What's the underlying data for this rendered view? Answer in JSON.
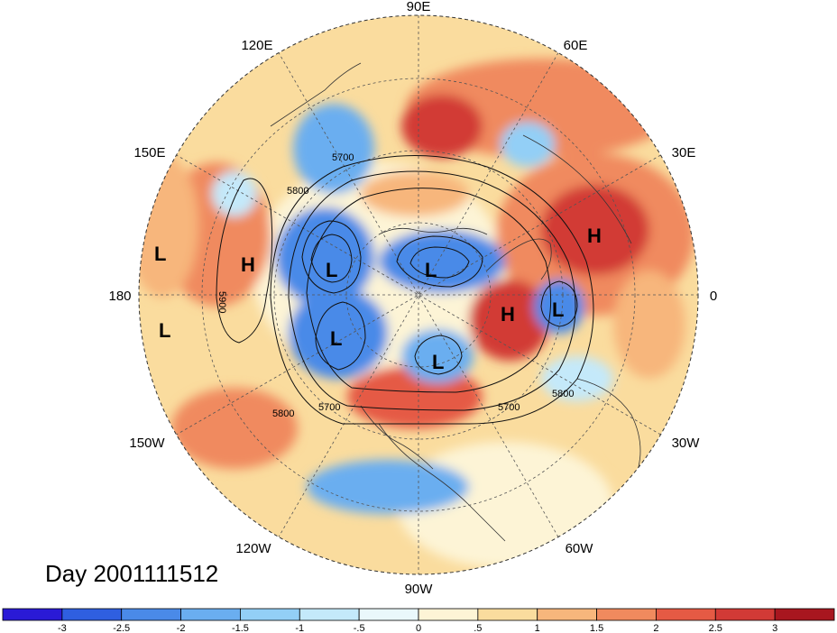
{
  "title_text": "Day 2001111512",
  "longitude_labels": [
    "90E",
    "60E",
    "30E",
    "0",
    "30W",
    "60W",
    "90W",
    "120W",
    "150W",
    "180",
    "150E",
    "120E"
  ],
  "contour_levels": [
    "5700",
    "5800",
    "5900",
    "5700",
    "5800",
    "5700",
    "5800",
    "5700"
  ],
  "pressure_centers": [
    {
      "label": "H",
      "type": "high",
      "region": "western-russia"
    },
    {
      "label": "H",
      "type": "high",
      "region": "greenland-sea"
    },
    {
      "label": "H",
      "type": "high",
      "region": "north-pacific"
    },
    {
      "label": "L",
      "type": "low",
      "region": "arctic-ocean"
    },
    {
      "label": "L",
      "type": "low",
      "region": "east-siberia"
    },
    {
      "label": "L",
      "type": "low",
      "region": "alaska"
    },
    {
      "label": "L",
      "type": "low",
      "region": "hudson-bay"
    },
    {
      "label": "L",
      "type": "low",
      "region": "north-atlantic"
    },
    {
      "label": "L",
      "type": "low",
      "region": "west-pacific-1"
    },
    {
      "label": "L",
      "type": "low",
      "region": "west-pacific-2"
    }
  ],
  "colorbar": {
    "ticks": [
      "-3",
      "-2.5",
      "-2",
      "-1.5",
      "-1",
      "-.5",
      "0",
      ".5",
      "1",
      "1.5",
      "2",
      "2.5",
      "3"
    ],
    "colors": [
      "#2a1ad6",
      "#2f5fe0",
      "#4a8ae8",
      "#6aaef0",
      "#93cff6",
      "#c4e9fa",
      "#eaf8fb",
      "#fdf4d6",
      "#fadc9e",
      "#f7b67c",
      "#f08a5e",
      "#e55a44",
      "#d23a36",
      "#a8161f"
    ]
  },
  "colors": {
    "background_anomaly": "#fadc9e",
    "warm_anomaly": "#f08a5e",
    "cold_anomaly": "#4a8ae8"
  }
}
